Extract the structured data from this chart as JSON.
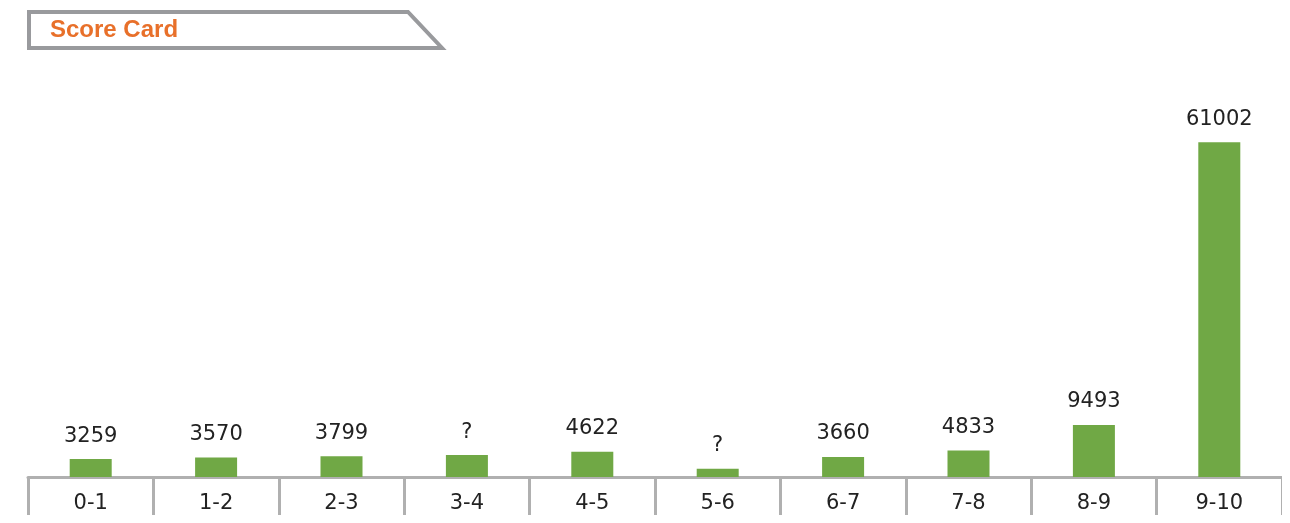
{
  "chart_data": {
    "type": "bar",
    "title": "Score Card",
    "categories": [
      "0-1",
      "1-2",
      "2-3",
      "3-4",
      "4-5",
      "5-6",
      "6-7",
      "7-8",
      "8-9",
      "9-10"
    ],
    "values": [
      3259,
      3570,
      3799,
      4000,
      4622,
      1500,
      3660,
      4833,
      9493,
      61002
    ],
    "value_labels": [
      "3259",
      "3570",
      "3799",
      "?",
      "4622",
      "?",
      "3660",
      "4833",
      "9493",
      "61002"
    ],
    "color": "#70a845"
  }
}
